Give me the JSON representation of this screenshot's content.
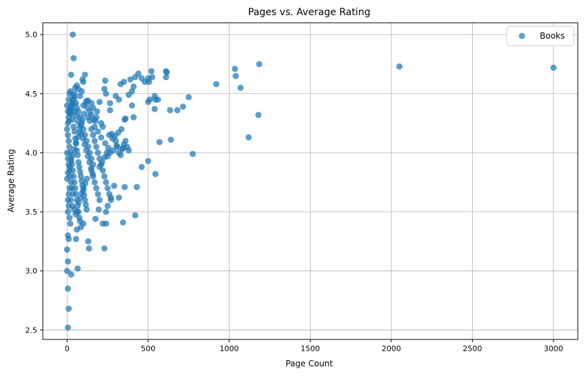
{
  "chart_data": {
    "type": "scatter",
    "title": "Pages vs. Average Rating",
    "xlabel": "Page Count",
    "ylabel": "Average Rating",
    "xlim": [
      -150,
      3150
    ],
    "ylim": [
      2.42,
      5.1
    ],
    "x_ticks": [
      0,
      500,
      1000,
      1500,
      2000,
      2500,
      3000
    ],
    "y_ticks": [
      2.5,
      3.0,
      3.5,
      4.0,
      4.5,
      5.0
    ],
    "x_tick_labels": [
      "0",
      "500",
      "1000",
      "1500",
      "2000",
      "2500",
      "3000"
    ],
    "y_tick_labels": [
      "2.5",
      "3.0",
      "3.5",
      "4.0",
      "4.5",
      "5.0"
    ],
    "grid": true,
    "legend_position": "top-right",
    "series": [
      {
        "name": "Books",
        "color": "#1f77b4",
        "points": [
          [
            35,
            5.0
          ],
          [
            40,
            4.8
          ],
          [
            25,
            4.66
          ],
          [
            5,
            2.52
          ],
          [
            10,
            2.68
          ],
          [
            5,
            2.85
          ],
          [
            0,
            3.0
          ],
          [
            25,
            2.97
          ],
          [
            5,
            3.08
          ],
          [
            0,
            3.18
          ],
          [
            10,
            3.27
          ],
          [
            5,
            3.3
          ],
          [
            65,
            3.02
          ],
          [
            55,
            3.27
          ],
          [
            60,
            3.35
          ],
          [
            100,
            3.4
          ],
          [
            85,
            3.37
          ],
          [
            130,
            3.25
          ],
          [
            135,
            3.19
          ],
          [
            230,
            3.19
          ],
          [
            345,
            3.41
          ],
          [
            420,
            3.47
          ],
          [
            220,
            3.4
          ],
          [
            240,
            3.4
          ],
          [
            240,
            3.5
          ],
          [
            250,
            3.55
          ],
          [
            270,
            3.62
          ],
          [
            320,
            3.62
          ],
          [
            290,
            3.72
          ],
          [
            355,
            3.71
          ],
          [
            430,
            3.71
          ],
          [
            545,
            3.82
          ],
          [
            500,
            3.93
          ],
          [
            460,
            3.88
          ],
          [
            775,
            3.99
          ],
          [
            640,
            4.11
          ],
          [
            570,
            4.09
          ],
          [
            1120,
            4.13
          ],
          [
            1180,
            4.32
          ],
          [
            920,
            4.58
          ],
          [
            1070,
            4.55
          ],
          [
            1040,
            4.65
          ],
          [
            1035,
            4.71
          ],
          [
            1185,
            4.75
          ],
          [
            2050,
            4.73
          ],
          [
            3000,
            4.72
          ],
          [
            750,
            4.47
          ],
          [
            715,
            4.39
          ],
          [
            680,
            4.36
          ],
          [
            635,
            4.36
          ],
          [
            615,
            4.68
          ],
          [
            610,
            4.69
          ],
          [
            610,
            4.64
          ],
          [
            540,
            4.48
          ],
          [
            545,
            4.45
          ],
          [
            560,
            4.45
          ],
          [
            540,
            4.37
          ],
          [
            510,
            4.45
          ],
          [
            500,
            4.43
          ],
          [
            505,
            4.6
          ],
          [
            520,
            4.69
          ],
          [
            525,
            4.64
          ],
          [
            500,
            4.63
          ],
          [
            480,
            4.6
          ],
          [
            460,
            4.63
          ],
          [
            440,
            4.67
          ],
          [
            420,
            4.64
          ],
          [
            410,
            4.56
          ],
          [
            400,
            4.52
          ],
          [
            400,
            4.4
          ],
          [
            410,
            4.3
          ],
          [
            380,
            4.49
          ],
          [
            390,
            4.62
          ],
          [
            350,
            4.6
          ],
          [
            330,
            4.58
          ],
          [
            360,
            4.29
          ],
          [
            355,
            4.28
          ],
          [
            320,
            4.45
          ],
          [
            300,
            4.48
          ],
          [
            265,
            4.42
          ],
          [
            265,
            4.36
          ],
          [
            240,
            4.5
          ],
          [
            235,
            4.61
          ],
          [
            230,
            4.54
          ],
          [
            200,
            4.43
          ],
          [
            185,
            4.35
          ],
          [
            180,
            4.3
          ],
          [
            175,
            4.27
          ],
          [
            165,
            4.28
          ],
          [
            150,
            4.32
          ],
          [
            140,
            4.27
          ],
          [
            130,
            4.3
          ],
          [
            115,
            4.42
          ],
          [
            120,
            4.44
          ],
          [
            130,
            4.44
          ],
          [
            100,
            4.4
          ],
          [
            95,
            4.62
          ],
          [
            110,
            4.66
          ],
          [
            100,
            4.6
          ],
          [
            90,
            4.52
          ],
          [
            80,
            4.48
          ],
          [
            70,
            4.54
          ],
          [
            60,
            4.57
          ],
          [
            50,
            4.55
          ],
          [
            45,
            4.5
          ],
          [
            40,
            4.48
          ],
          [
            35,
            4.45
          ],
          [
            30,
            4.42
          ],
          [
            20,
            4.38
          ],
          [
            15,
            4.35
          ],
          [
            10,
            4.3
          ],
          [
            5,
            4.25
          ],
          [
            0,
            4.2
          ],
          [
            5,
            4.15
          ],
          [
            10,
            4.1
          ],
          [
            15,
            4.05
          ],
          [
            20,
            4.0
          ],
          [
            25,
            3.95
          ],
          [
            30,
            3.9
          ],
          [
            35,
            3.85
          ],
          [
            40,
            3.8
          ],
          [
            45,
            3.75
          ],
          [
            50,
            3.7
          ],
          [
            55,
            3.65
          ],
          [
            60,
            3.6
          ],
          [
            65,
            3.55
          ],
          [
            70,
            3.5
          ],
          [
            75,
            3.45
          ],
          [
            80,
            3.42
          ],
          [
            0,
            4.0
          ],
          [
            5,
            3.95
          ],
          [
            10,
            3.9
          ],
          [
            15,
            3.85
          ],
          [
            20,
            3.8
          ],
          [
            25,
            3.75
          ],
          [
            30,
            3.7
          ],
          [
            35,
            3.65
          ],
          [
            0,
            4.4
          ],
          [
            5,
            4.35
          ],
          [
            10,
            4.45
          ],
          [
            15,
            4.5
          ],
          [
            20,
            4.52
          ],
          [
            25,
            4.4
          ],
          [
            30,
            4.33
          ],
          [
            35,
            4.28
          ],
          [
            40,
            4.22
          ],
          [
            45,
            4.18
          ],
          [
            50,
            4.12
          ],
          [
            55,
            4.08
          ],
          [
            60,
            4.02
          ],
          [
            65,
            3.98
          ],
          [
            70,
            3.92
          ],
          [
            75,
            3.88
          ],
          [
            80,
            3.84
          ],
          [
            85,
            3.8
          ],
          [
            90,
            3.76
          ],
          [
            95,
            3.72
          ],
          [
            100,
            3.68
          ],
          [
            105,
            3.64
          ],
          [
            110,
            3.6
          ],
          [
            115,
            3.56
          ],
          [
            120,
            3.52
          ],
          [
            5,
            3.6
          ],
          [
            10,
            3.55
          ],
          [
            15,
            3.45
          ],
          [
            20,
            3.4
          ],
          [
            5,
            3.5
          ],
          [
            10,
            3.65
          ],
          [
            15,
            3.7
          ],
          [
            150,
            4.2
          ],
          [
            160,
            4.15
          ],
          [
            170,
            4.1
          ],
          [
            180,
            4.05
          ],
          [
            190,
            4.0
          ],
          [
            200,
            3.95
          ],
          [
            210,
            3.9
          ],
          [
            220,
            3.85
          ],
          [
            230,
            3.8
          ],
          [
            240,
            3.75
          ],
          [
            250,
            3.7
          ],
          [
            260,
            3.65
          ],
          [
            270,
            3.6
          ],
          [
            150,
            3.85
          ],
          [
            160,
            3.8
          ],
          [
            170,
            3.75
          ],
          [
            180,
            3.7
          ],
          [
            190,
            3.65
          ],
          [
            200,
            3.6
          ],
          [
            130,
            4.05
          ],
          [
            140,
            4.0
          ],
          [
            150,
            3.95
          ],
          [
            160,
            3.9
          ],
          [
            120,
            4.1
          ],
          [
            110,
            4.15
          ],
          [
            100,
            4.2
          ],
          [
            90,
            4.25
          ],
          [
            80,
            4.3
          ],
          [
            70,
            4.35
          ],
          [
            60,
            4.38
          ],
          [
            55,
            4.42
          ],
          [
            45,
            4.46
          ],
          [
            300,
            4.1
          ],
          [
            310,
            4.05
          ],
          [
            320,
            4.0
          ],
          [
            330,
            3.98
          ],
          [
            340,
            4.03
          ],
          [
            350,
            4.07
          ],
          [
            360,
            4.1
          ],
          [
            370,
            4.05
          ],
          [
            380,
            4.02
          ],
          [
            260,
            4.15
          ],
          [
            280,
            4.12
          ],
          [
            220,
            4.22
          ],
          [
            210,
            4.25
          ],
          [
            190,
            4.18
          ],
          [
            170,
            4.22
          ],
          [
            160,
            4.38
          ],
          [
            150,
            4.42
          ],
          [
            140,
            4.35
          ],
          [
            125,
            4.38
          ],
          [
            105,
            4.33
          ],
          [
            95,
            4.28
          ],
          [
            85,
            4.23
          ],
          [
            75,
            4.17
          ],
          [
            65,
            4.13
          ],
          [
            55,
            4.08
          ],
          [
            45,
            4.03
          ],
          [
            35,
            3.98
          ],
          [
            25,
            3.93
          ],
          [
            15,
            3.88
          ],
          [
            5,
            3.83
          ],
          [
            0,
            3.78
          ],
          [
            12,
            4.27
          ],
          [
            18,
            4.33
          ],
          [
            28,
            4.37
          ],
          [
            38,
            4.41
          ],
          [
            48,
            4.35
          ],
          [
            58,
            4.31
          ],
          [
            68,
            4.26
          ],
          [
            78,
            4.21
          ],
          [
            88,
            4.16
          ],
          [
            98,
            4.12
          ],
          [
            108,
            4.07
          ],
          [
            118,
            4.02
          ],
          [
            128,
            3.97
          ],
          [
            138,
            3.92
          ],
          [
            148,
            3.87
          ],
          [
            158,
            3.82
          ],
          [
            22,
            3.6
          ],
          [
            32,
            3.55
          ],
          [
            42,
            3.52
          ],
          [
            52,
            3.48
          ],
          [
            62,
            3.5
          ],
          [
            72,
            3.58
          ],
          [
            82,
            3.62
          ],
          [
            92,
            3.66
          ],
          [
            102,
            3.7
          ],
          [
            112,
            3.74
          ],
          [
            122,
            3.78
          ],
          [
            250,
            3.97
          ],
          [
            265,
            4.0
          ],
          [
            285,
            4.02
          ],
          [
            305,
            4.06
          ],
          [
            200,
            3.88
          ],
          [
            215,
            3.92
          ],
          [
            230,
            3.96
          ],
          [
            245,
            4.0
          ],
          [
            195,
            3.52
          ],
          [
            175,
            3.44
          ],
          [
            210,
            4.13
          ],
          [
            235,
            4.08
          ],
          [
            255,
            4.04
          ],
          [
            275,
            4.16
          ],
          [
            295,
            4.14
          ],
          [
            315,
            4.17
          ],
          [
            335,
            4.2
          ],
          [
            345,
            4.04
          ]
        ]
      }
    ]
  }
}
